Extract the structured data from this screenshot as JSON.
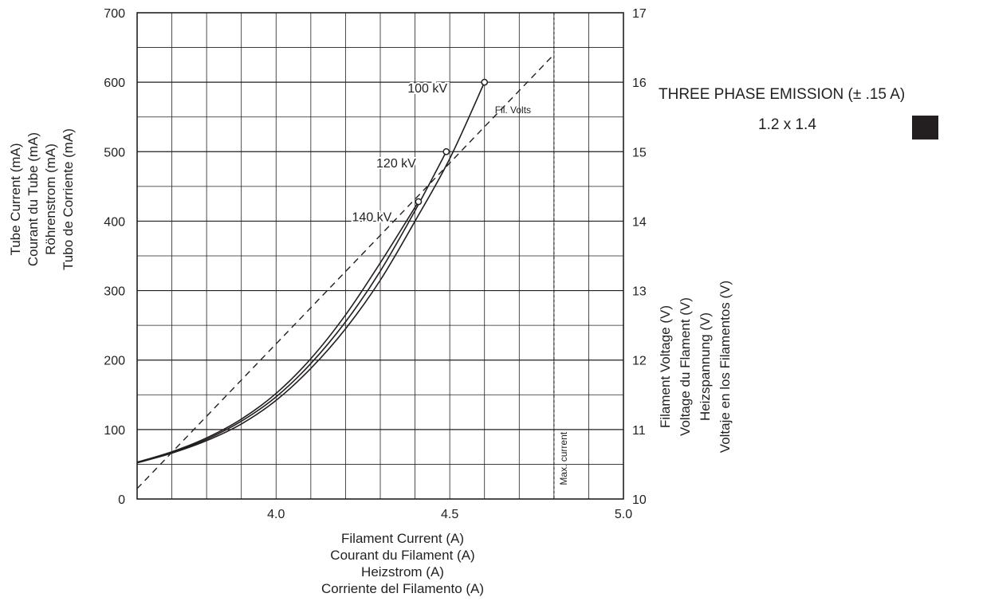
{
  "chart_data": {
    "type": "line",
    "title": "",
    "xlabel": [
      "Filament Current (A)",
      "Courant du Filament (A)",
      "Heizstrom (A)",
      "Corriente del Filamento (A)"
    ],
    "ylabel": [
      "Tube Current (mA)",
      "Courant du Tube (mA)",
      "Röhrenstrom (mA)",
      "Tubo de Corriente (mA)"
    ],
    "y2label": [
      "Filament Voltage (V)",
      "Voltage du Flament  (V)",
      "Heizspannung (V)",
      "Voltaje en los Filamentos (V)"
    ],
    "xlim": [
      3.6,
      5.0
    ],
    "ylim": [
      0,
      700
    ],
    "y2lim": [
      10,
      17
    ],
    "x_ticks": [
      {
        "value": 4.0,
        "label": "4.0"
      },
      {
        "value": 4.5,
        "label": "4.5"
      },
      {
        "value": 5.0,
        "label": "5.0"
      }
    ],
    "y_ticks": [
      {
        "value": 0,
        "label": "0"
      },
      {
        "value": 100,
        "label": "100"
      },
      {
        "value": 200,
        "label": "200"
      },
      {
        "value": 300,
        "label": "300"
      },
      {
        "value": 400,
        "label": "400"
      },
      {
        "value": 500,
        "label": "500"
      },
      {
        "value": 600,
        "label": "600"
      },
      {
        "value": 700,
        "label": "700"
      }
    ],
    "y2_ticks": [
      {
        "value": 10,
        "label": "10"
      },
      {
        "value": 11,
        "label": "11"
      },
      {
        "value": 12,
        "label": "12"
      },
      {
        "value": 13,
        "label": "13"
      },
      {
        "value": 14,
        "label": "14"
      },
      {
        "value": 15,
        "label": "15"
      },
      {
        "value": 16,
        "label": "16"
      },
      {
        "value": 17,
        "label": "17"
      }
    ],
    "x_minor_step": 0.1,
    "y_minor_step": 50,
    "grid": true,
    "series": [
      {
        "name": "100 kV",
        "axis": "left",
        "style": "solid",
        "end_marker": true,
        "x": [
          3.6,
          3.7,
          3.8,
          3.9,
          4.0,
          4.1,
          4.2,
          4.3,
          4.4,
          4.5,
          4.6
        ],
        "y": [
          52,
          66,
          84,
          108,
          142,
          188,
          245,
          315,
          400,
          490,
          600
        ]
      },
      {
        "name": "120 kV",
        "axis": "left",
        "style": "solid",
        "end_marker": true,
        "x": [
          3.6,
          3.7,
          3.8,
          3.9,
          4.0,
          4.1,
          4.2,
          4.3,
          4.4,
          4.49
        ],
        "y": [
          52,
          67,
          86,
          112,
          147,
          195,
          255,
          328,
          415,
          500
        ]
      },
      {
        "name": "140 kV",
        "axis": "left",
        "style": "solid",
        "end_marker": true,
        "x": [
          3.6,
          3.7,
          3.8,
          3.9,
          4.0,
          4.1,
          4.2,
          4.3,
          4.41
        ],
        "y": [
          53,
          68,
          88,
          115,
          152,
          202,
          265,
          340,
          428
        ]
      },
      {
        "name": "Fil. Volts",
        "axis": "right",
        "style": "dashed",
        "end_marker": false,
        "x": [
          3.6,
          4.8
        ],
        "y": [
          10.15,
          16.4
        ]
      }
    ],
    "annotations": [
      {
        "text": "100 kV",
        "x": 4.47,
        "y": 592
      },
      {
        "text": "120 kV",
        "x": 4.38,
        "y": 484
      },
      {
        "text": "140 kV",
        "x": 4.31,
        "y": 407
      },
      {
        "text": "Fil. Volts",
        "x": 4.6,
        "y": 15.6,
        "axis": "right"
      },
      {
        "text": "Max. current",
        "x": 4.8,
        "y": 20,
        "rotate": true
      }
    ],
    "vlines": [
      {
        "x": 4.8,
        "style": "dotted",
        "label": "Max. current"
      }
    ]
  },
  "legend": {
    "title": "THREE PHASE EMISSION (± .15 A)",
    "focal_spot": "1.2 x 1.4",
    "swatch_color": "#231f20"
  }
}
